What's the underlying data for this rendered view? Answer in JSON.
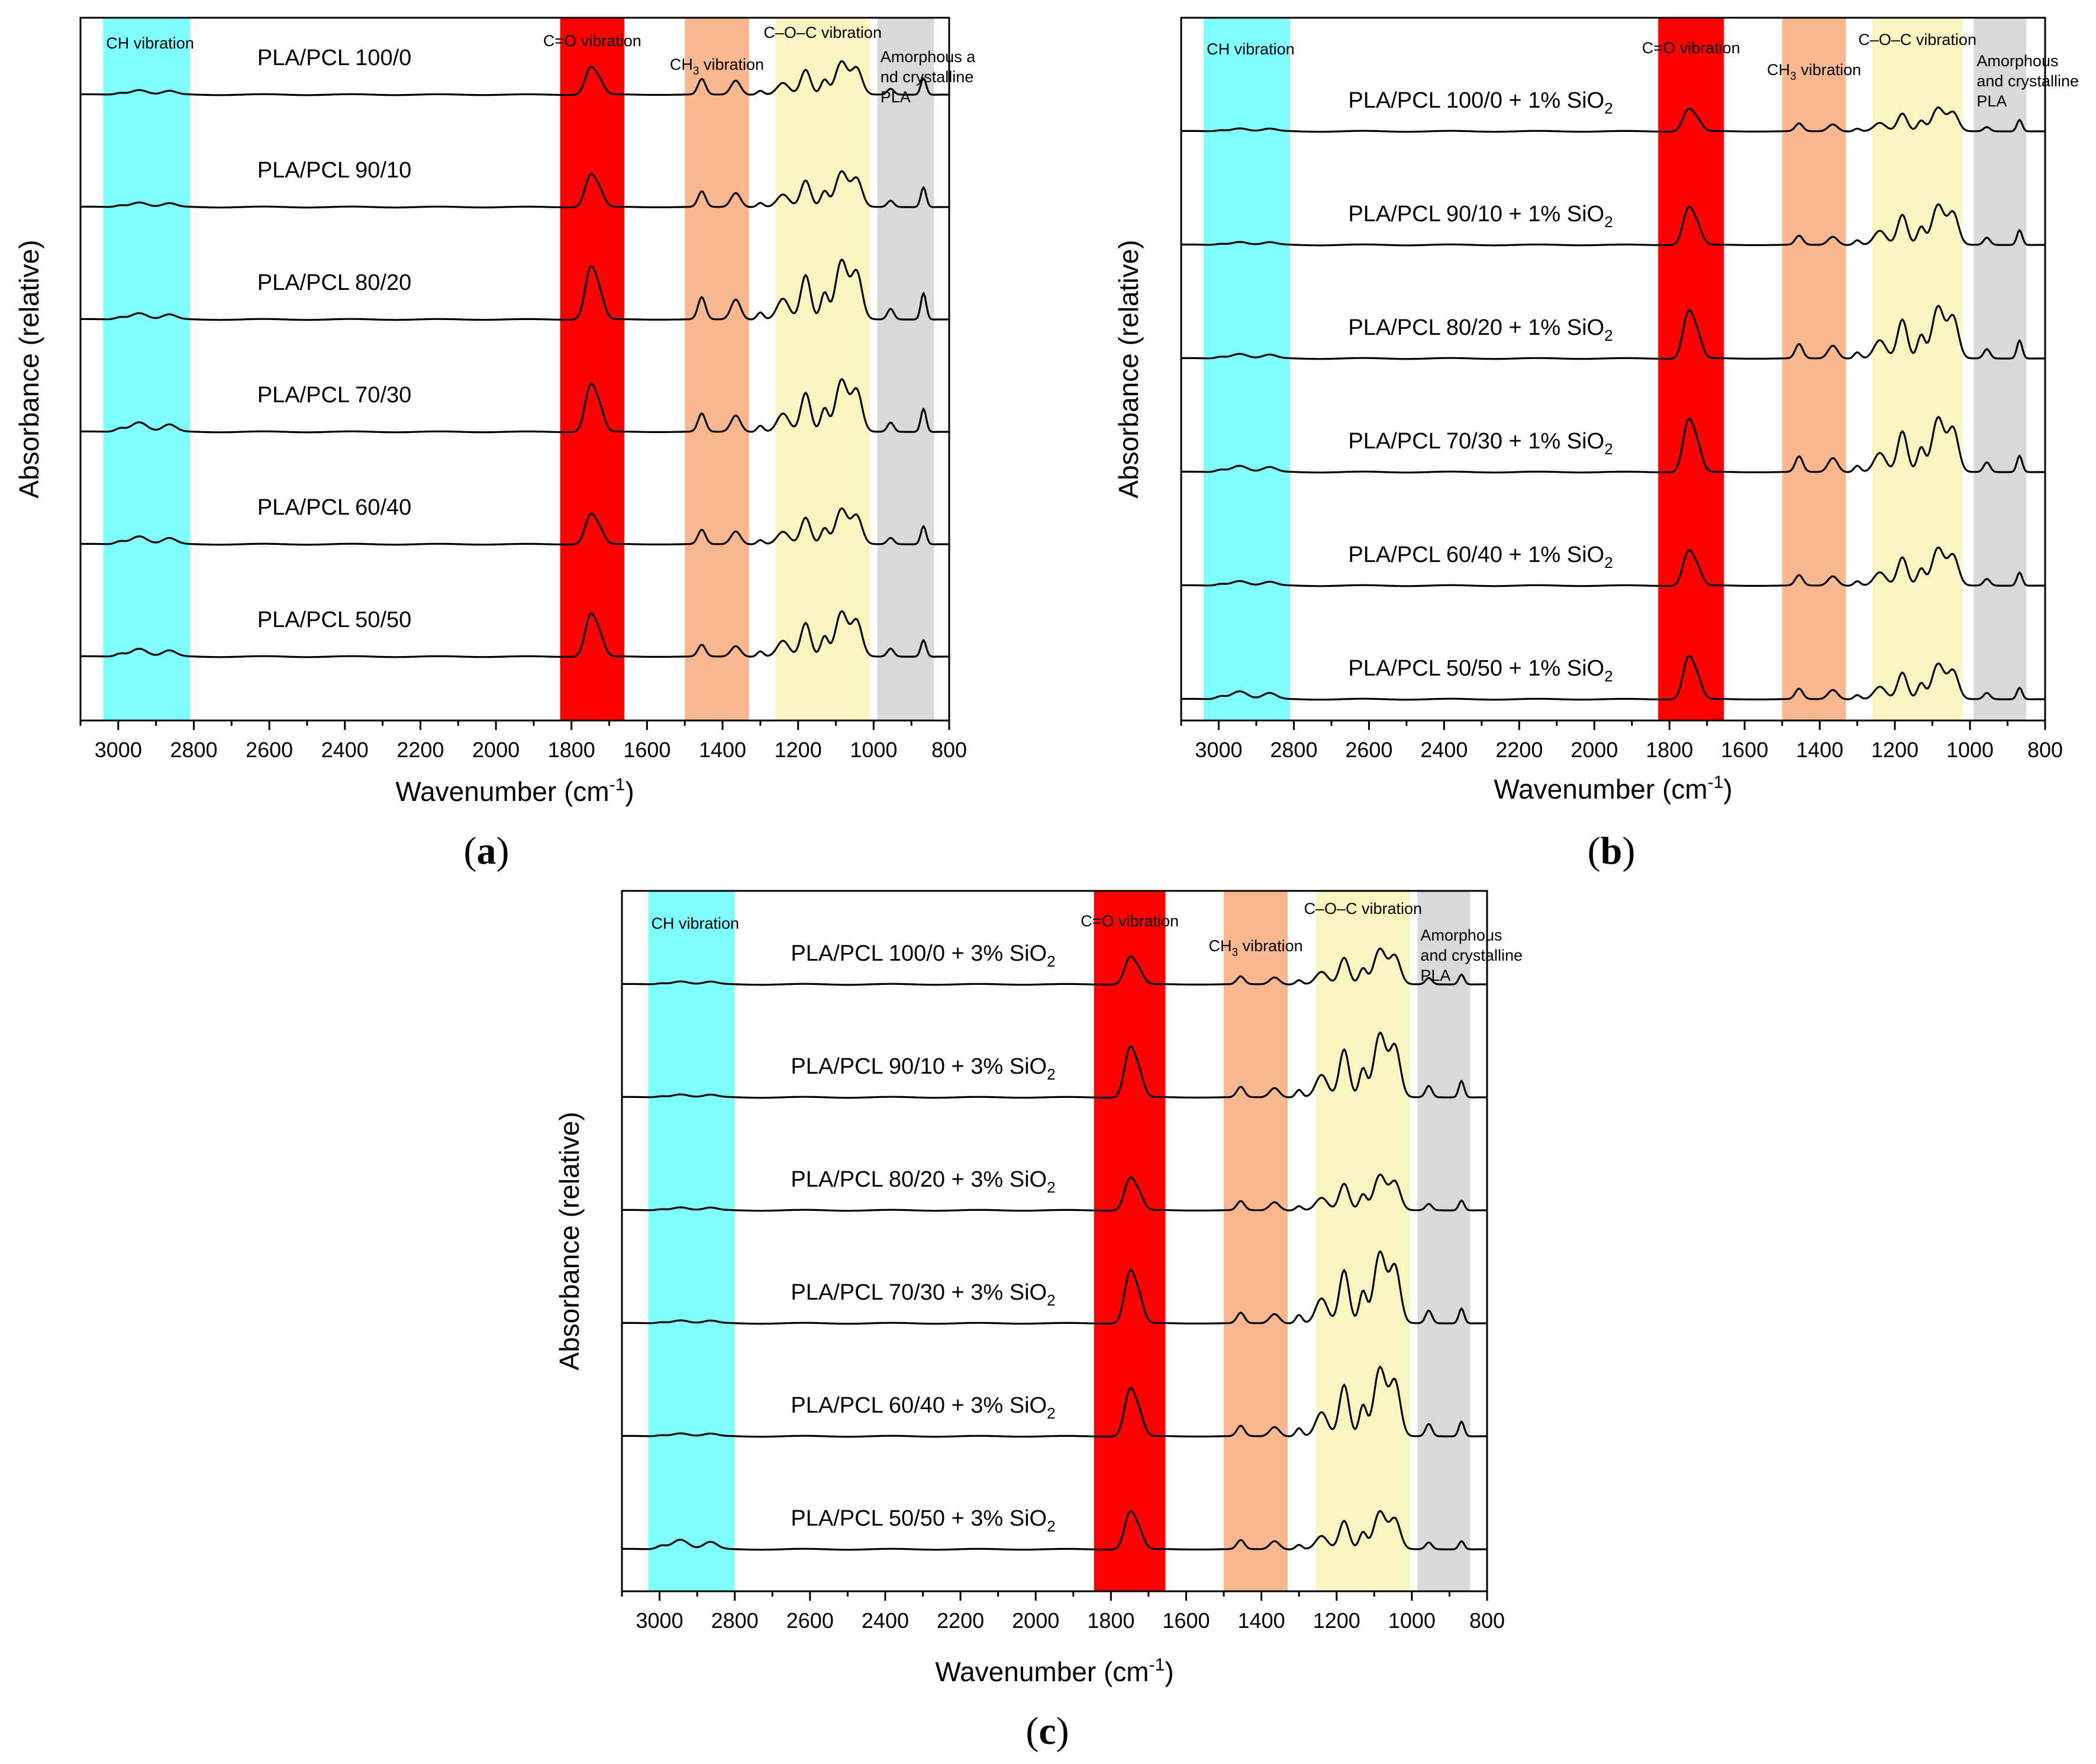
{
  "chart_data": [
    {
      "type": "line",
      "panel_label": "a",
      "xlabel": "Wavenumber (cm",
      "xlabel_sup": "-1",
      "xlabel_end": ")",
      "ylabel": "Absorbance (relative)",
      "xlim": [
        3100,
        800
      ],
      "xticks": [
        3000,
        2800,
        2600,
        2400,
        2200,
        2000,
        1800,
        1600,
        1400,
        1200,
        1000,
        800
      ],
      "bands": [
        {
          "name": "CH vibration",
          "from": 3040,
          "to": 2810,
          "color": "#80ffff"
        },
        {
          "name": "C=O vibration",
          "from": 1830,
          "to": 1660,
          "color": "#ff0000"
        },
        {
          "name": "CH",
          "sub": "3",
          "suffix": " vibration",
          "from": 1500,
          "to": 1330,
          "color": "#f8b78e"
        },
        {
          "name": "C–O–C vibration",
          "from": 1260,
          "to": 1010,
          "color": "#f8f5c0"
        },
        {
          "name": "Amorphous a",
          "name2": "nd crystalline",
          "name3": "PLA",
          "from": 990,
          "to": 840,
          "color": "#d9d9d9"
        }
      ],
      "series": [
        {
          "name": "PLA/PCL 100/0",
          "co": 0.55,
          "ch3": 0.6,
          "coc": 0.7,
          "ch": 0.15,
          "g860": 0.5
        },
        {
          "name": "PLA/PCL 90/10",
          "co": 0.65,
          "ch3": 0.6,
          "coc": 0.75,
          "ch": 0.15,
          "g860": 0.6
        },
        {
          "name": "PLA/PCL 80/20",
          "co": 1.05,
          "ch3": 0.85,
          "coc": 1.25,
          "ch": 0.2,
          "g860": 0.8
        },
        {
          "name": "PLA/PCL 70/30",
          "co": 0.95,
          "ch3": 0.7,
          "coc": 1.1,
          "ch": 0.3,
          "g860": 0.7
        },
        {
          "name": "PLA/PCL 60/40",
          "co": 0.6,
          "ch3": 0.55,
          "coc": 0.75,
          "ch": 0.25,
          "g860": 0.55
        },
        {
          "name": "PLA/PCL 50/50",
          "co": 0.85,
          "ch3": 0.45,
          "coc": 0.95,
          "ch": 0.25,
          "g860": 0.5
        }
      ]
    },
    {
      "type": "line",
      "panel_label": "b",
      "xlabel": "Wavenumber (cm",
      "xlabel_sup": "-1",
      "xlabel_end": ")",
      "ylabel": "Absorbance (relative)",
      "xlim": [
        3100,
        800
      ],
      "xticks": [
        3000,
        2800,
        2600,
        2400,
        2200,
        2000,
        1800,
        1600,
        1400,
        1200,
        1000,
        800
      ],
      "bands": [
        {
          "name": "CH vibration",
          "from": 3040,
          "to": 2810,
          "color": "#80ffff"
        },
        {
          "name": "C=O vibration",
          "from": 1830,
          "to": 1655,
          "color": "#ff0000"
        },
        {
          "name": "CH",
          "sub": "3",
          "suffix": " vibration",
          "from": 1500,
          "to": 1330,
          "color": "#f8b78e"
        },
        {
          "name": "C–O–C vibration",
          "from": 1260,
          "to": 1020,
          "color": "#f8f5c0"
        },
        {
          "name": "Amorphous",
          "name2": "and crystalline",
          "name3": "PLA",
          "from": 990,
          "to": 850,
          "color": "#d9d9d9"
        }
      ],
      "series": [
        {
          "name": "PLA/PCL 100/0 + 1% SiO",
          "sub": "2",
          "co": 0.45,
          "ch3": 0.3,
          "coc": 0.5,
          "ch": 0.1,
          "g860": 0.35
        },
        {
          "name": "PLA/PCL 90/10 + 1% SiO",
          "sub": "2",
          "co": 0.75,
          "ch3": 0.35,
          "coc": 0.85,
          "ch": 0.1,
          "g860": 0.45
        },
        {
          "name": "PLA/PCL 80/20 + 1% SiO",
          "sub": "2",
          "co": 0.95,
          "ch3": 0.55,
          "coc": 1.1,
          "ch": 0.15,
          "g860": 0.55
        },
        {
          "name": "PLA/PCL 70/30 + 1% SiO",
          "sub": "2",
          "co": 1.05,
          "ch3": 0.6,
          "coc": 1.15,
          "ch": 0.2,
          "g860": 0.5
        },
        {
          "name": "PLA/PCL 60/40 + 1% SiO",
          "sub": "2",
          "co": 0.7,
          "ch3": 0.4,
          "coc": 0.8,
          "ch": 0.15,
          "g860": 0.4
        },
        {
          "name": "PLA/PCL 50/50 + 1% SiO",
          "sub": "2",
          "co": 0.85,
          "ch3": 0.4,
          "coc": 0.75,
          "ch": 0.25,
          "g860": 0.35
        }
      ]
    },
    {
      "type": "line",
      "panel_label": "c",
      "xlabel": "Wavenumber (cm",
      "xlabel_sup": "-1",
      "xlabel_end": ")",
      "ylabel": "Absorbance (relative)",
      "xlim": [
        3100,
        800
      ],
      "xticks": [
        3000,
        2800,
        2600,
        2400,
        2200,
        2000,
        1800,
        1600,
        1400,
        1200,
        1000,
        800
      ],
      "bands": [
        {
          "name": "CH vibration",
          "from": 3030,
          "to": 2800,
          "color": "#80ffff"
        },
        {
          "name": "C=O vibration",
          "from": 1845,
          "to": 1655,
          "color": "#ff0000"
        },
        {
          "name": "CH",
          "sub": "3",
          "suffix": " vibration",
          "from": 1500,
          "to": 1330,
          "color": "#f8b78e"
        },
        {
          "name": "C–O–C vibration",
          "from": 1255,
          "to": 1005,
          "color": "#f8f5c0"
        },
        {
          "name": "Amorphous",
          "name2": "and crystalline",
          "name3": "PLA",
          "from": 985,
          "to": 845,
          "color": "#d9d9d9"
        }
      ],
      "series": [
        {
          "name": "PLA/PCL 100/0 + 3% SiO",
          "sub": "2",
          "co": 0.55,
          "ch3": 0.3,
          "coc": 0.75,
          "ch": 0.1,
          "g860": 0.3
        },
        {
          "name": "PLA/PCL 90/10 + 3% SiO",
          "sub": "2",
          "co": 1.0,
          "ch3": 0.4,
          "coc": 1.35,
          "ch": 0.1,
          "g860": 0.5
        },
        {
          "name": "PLA/PCL 80/20 + 3% SiO",
          "sub": "2",
          "co": 0.65,
          "ch3": 0.35,
          "coc": 0.75,
          "ch": 0.1,
          "g860": 0.3
        },
        {
          "name": "PLA/PCL 70/30 + 3% SiO",
          "sub": "2",
          "co": 1.05,
          "ch3": 0.4,
          "coc": 1.5,
          "ch": 0.1,
          "g860": 0.45
        },
        {
          "name": "PLA/PCL 60/40 + 3% SiO",
          "sub": "2",
          "co": 0.95,
          "ch3": 0.4,
          "coc": 1.45,
          "ch": 0.1,
          "g860": 0.45
        },
        {
          "name": "PLA/PCL 50/50 + 3% SiO",
          "sub": "2",
          "co": 0.75,
          "ch3": 0.35,
          "coc": 0.8,
          "ch": 0.3,
          "g860": 0.25
        }
      ]
    }
  ]
}
